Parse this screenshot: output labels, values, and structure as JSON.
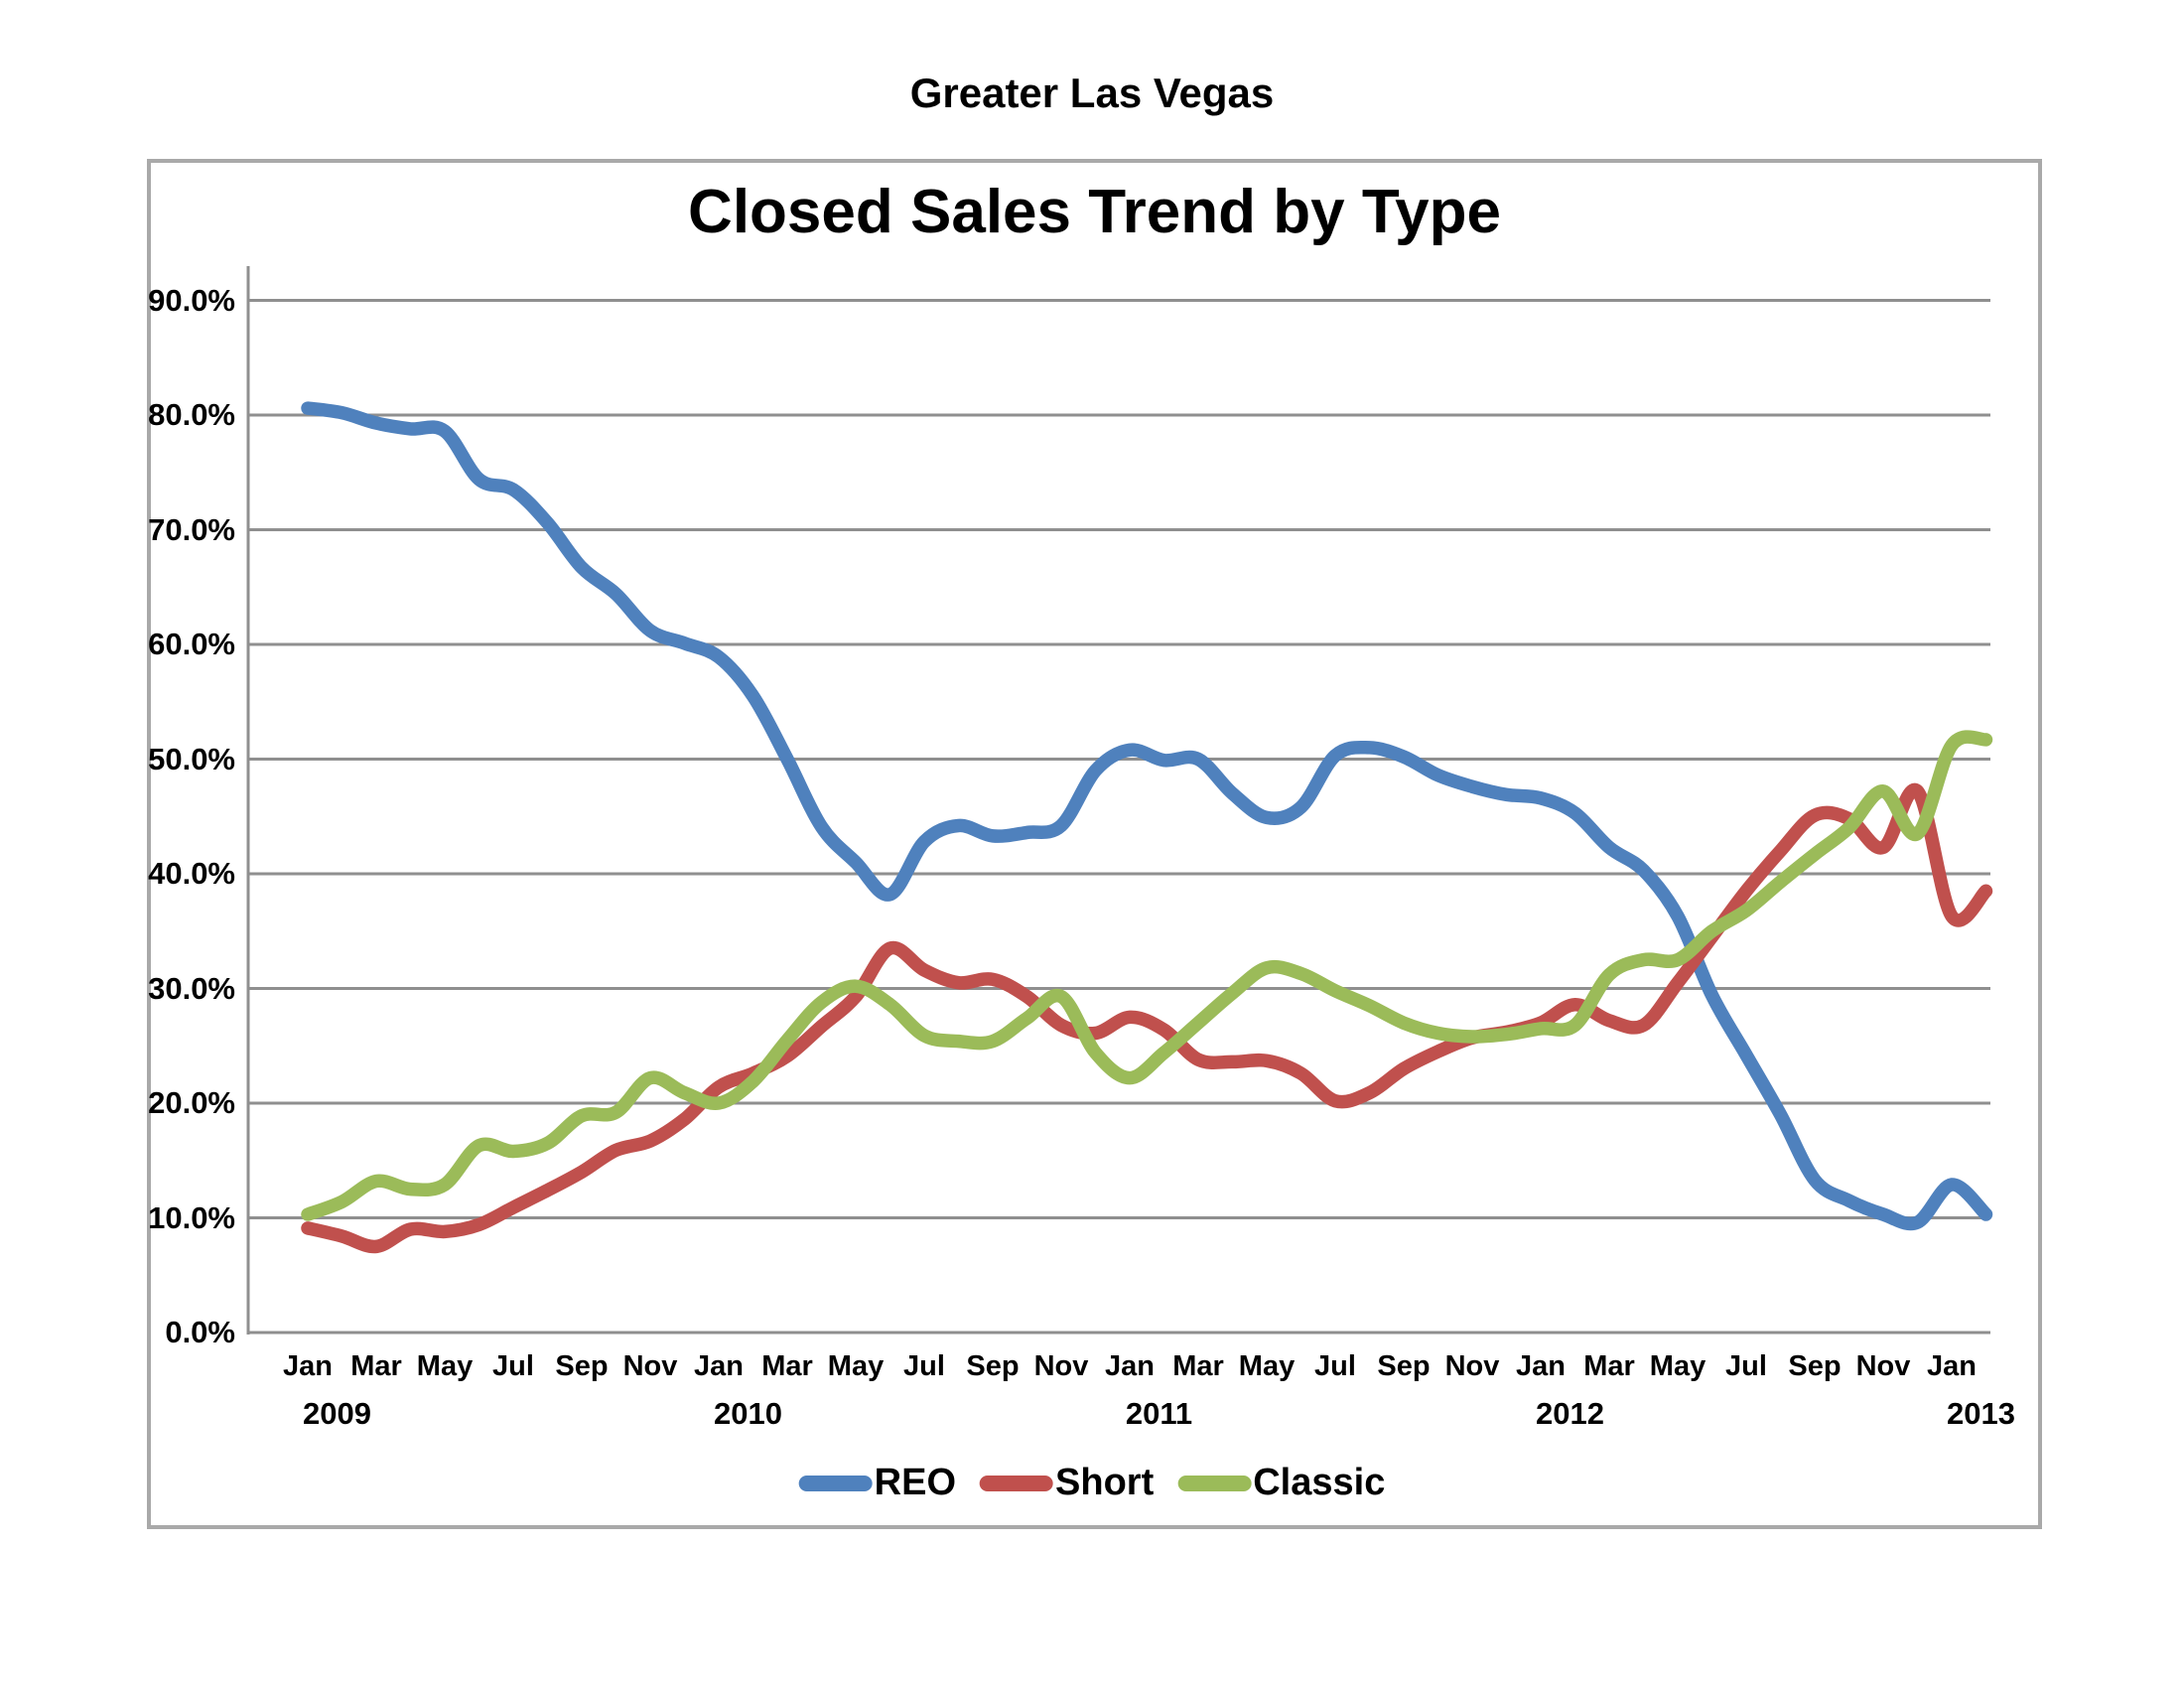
{
  "page": {
    "header_title": "Greater Las Vegas"
  },
  "chart_data": {
    "type": "line",
    "title": "Closed Sales Trend by Type",
    "xlabel": "",
    "ylabel": "",
    "grid": true,
    "legend_position": "bottom",
    "ylim": [
      0,
      90
    ],
    "y_axis": {
      "ticks": [
        {
          "v": 90,
          "label": "90.0%"
        },
        {
          "v": 80,
          "label": "80.0%"
        },
        {
          "v": 70,
          "label": "70.0%"
        },
        {
          "v": 60,
          "label": "60.0%"
        },
        {
          "v": 50,
          "label": "50.0%"
        },
        {
          "v": 40,
          "label": "40.0%"
        },
        {
          "v": 30,
          "label": "30.0%"
        },
        {
          "v": 20,
          "label": "20.0%"
        },
        {
          "v": 10,
          "label": "10.0%"
        },
        {
          "v": 0,
          "label": "0.0%"
        }
      ]
    },
    "x_axis": {
      "ticks": [
        {
          "m": 0,
          "label": "Jan"
        },
        {
          "m": 2,
          "label": "Mar"
        },
        {
          "m": 4,
          "label": "May"
        },
        {
          "m": 6,
          "label": "Jul"
        },
        {
          "m": 8,
          "label": "Sep"
        },
        {
          "m": 10,
          "label": "Nov"
        },
        {
          "m": 12,
          "label": "Jan"
        },
        {
          "m": 14,
          "label": "Mar"
        },
        {
          "m": 16,
          "label": "May"
        },
        {
          "m": 18,
          "label": "Jul"
        },
        {
          "m": 20,
          "label": "Sep"
        },
        {
          "m": 22,
          "label": "Nov"
        },
        {
          "m": 24,
          "label": "Jan"
        },
        {
          "m": 26,
          "label": "Mar"
        },
        {
          "m": 28,
          "label": "May"
        },
        {
          "m": 30,
          "label": "Jul"
        },
        {
          "m": 32,
          "label": "Sep"
        },
        {
          "m": 34,
          "label": "Nov"
        },
        {
          "m": 36,
          "label": "Jan"
        },
        {
          "m": 38,
          "label": "Mar"
        },
        {
          "m": 40,
          "label": "May"
        },
        {
          "m": 42,
          "label": "Jul"
        },
        {
          "m": 44,
          "label": "Sep"
        },
        {
          "m": 46,
          "label": "Nov"
        },
        {
          "m": 48,
          "label": "Jan"
        }
      ],
      "years": [
        {
          "m": 1,
          "label": "2009"
        },
        {
          "m": 13,
          "label": "2010"
        },
        {
          "m": 25,
          "label": "2011"
        },
        {
          "m": 37,
          "label": "2012"
        },
        {
          "m": 49,
          "label": "2013"
        }
      ]
    },
    "categories": [
      "Jan-09",
      "Feb-09",
      "Mar-09",
      "Apr-09",
      "May-09",
      "Jun-09",
      "Jul-09",
      "Aug-09",
      "Sep-09",
      "Oct-09",
      "Nov-09",
      "Dec-09",
      "Jan-10",
      "Feb-10",
      "Mar-10",
      "Apr-10",
      "May-10",
      "Jun-10",
      "Jul-10",
      "Aug-10",
      "Sep-10",
      "Oct-10",
      "Nov-10",
      "Dec-10",
      "Jan-11",
      "Feb-11",
      "Mar-11",
      "Apr-11",
      "May-11",
      "Jun-11",
      "Jul-11",
      "Aug-11",
      "Sep-11",
      "Oct-11",
      "Nov-11",
      "Dec-11",
      "Jan-12",
      "Feb-12",
      "Mar-12",
      "Apr-12",
      "May-12",
      "Jun-12",
      "Jul-12",
      "Aug-12",
      "Sep-12",
      "Oct-12",
      "Nov-12",
      "Dec-12",
      "Jan-13",
      "Feb-13"
    ],
    "series": [
      {
        "name": "REO",
        "color": "#4F81BD",
        "values": [
          80.6,
          80.2,
          79.3,
          78.8,
          78.6,
          74.4,
          73.5,
          70.6,
          66.7,
          64.4,
          61.2,
          60.1,
          58.9,
          55.5,
          50.0,
          44.1,
          41.0,
          38.2,
          42.8,
          44.2,
          43.3,
          43.6,
          44.2,
          49.0,
          50.8,
          49.9,
          50.0,
          47.0,
          44.9,
          45.8,
          50.3,
          51.0,
          50.2,
          48.6,
          47.6,
          46.9,
          46.6,
          45.3,
          42.3,
          40.3,
          36.3,
          29.4,
          24.2,
          19.0,
          13.3,
          11.5,
          10.3,
          9.6,
          12.9,
          10.3
        ]
      },
      {
        "name": "Short",
        "color": "#C0504D",
        "values": [
          9.1,
          8.4,
          7.5,
          9.0,
          8.8,
          9.4,
          10.9,
          12.4,
          14.0,
          15.9,
          16.7,
          18.6,
          21.4,
          22.6,
          24.1,
          26.7,
          29.3,
          33.5,
          31.6,
          30.5,
          30.8,
          29.3,
          26.8,
          26.1,
          27.5,
          26.4,
          23.8,
          23.6,
          23.7,
          22.6,
          20.2,
          20.9,
          23.0,
          24.5,
          25.7,
          26.2,
          27.0,
          28.6,
          27.2,
          26.8,
          30.5,
          34.5,
          38.5,
          42.0,
          45.1,
          44.8,
          42.3,
          47.2,
          36.3,
          38.5
        ]
      },
      {
        "name": "Classic",
        "color": "#9BBB59",
        "values": [
          10.3,
          11.4,
          13.2,
          12.5,
          12.9,
          16.3,
          15.8,
          16.5,
          18.9,
          19.2,
          22.2,
          20.9,
          20.0,
          21.9,
          25.5,
          28.8,
          30.2,
          28.6,
          25.9,
          25.4,
          25.4,
          27.4,
          29.3,
          24.4,
          22.2,
          24.4,
          27.0,
          29.6,
          31.8,
          31.3,
          29.8,
          28.5,
          27.0,
          26.1,
          25.8,
          26.0,
          26.5,
          26.8,
          31.2,
          32.5,
          32.5,
          35.0,
          36.8,
          39.3,
          41.7,
          44.0,
          47.2,
          43.5,
          51.2,
          51.7
        ]
      }
    ],
    "style": {
      "gridline_color": "#8f8f8f",
      "axis_color": "#8f8f8f",
      "frame_color": "#a9a9a9",
      "line_width": 13.5
    }
  }
}
